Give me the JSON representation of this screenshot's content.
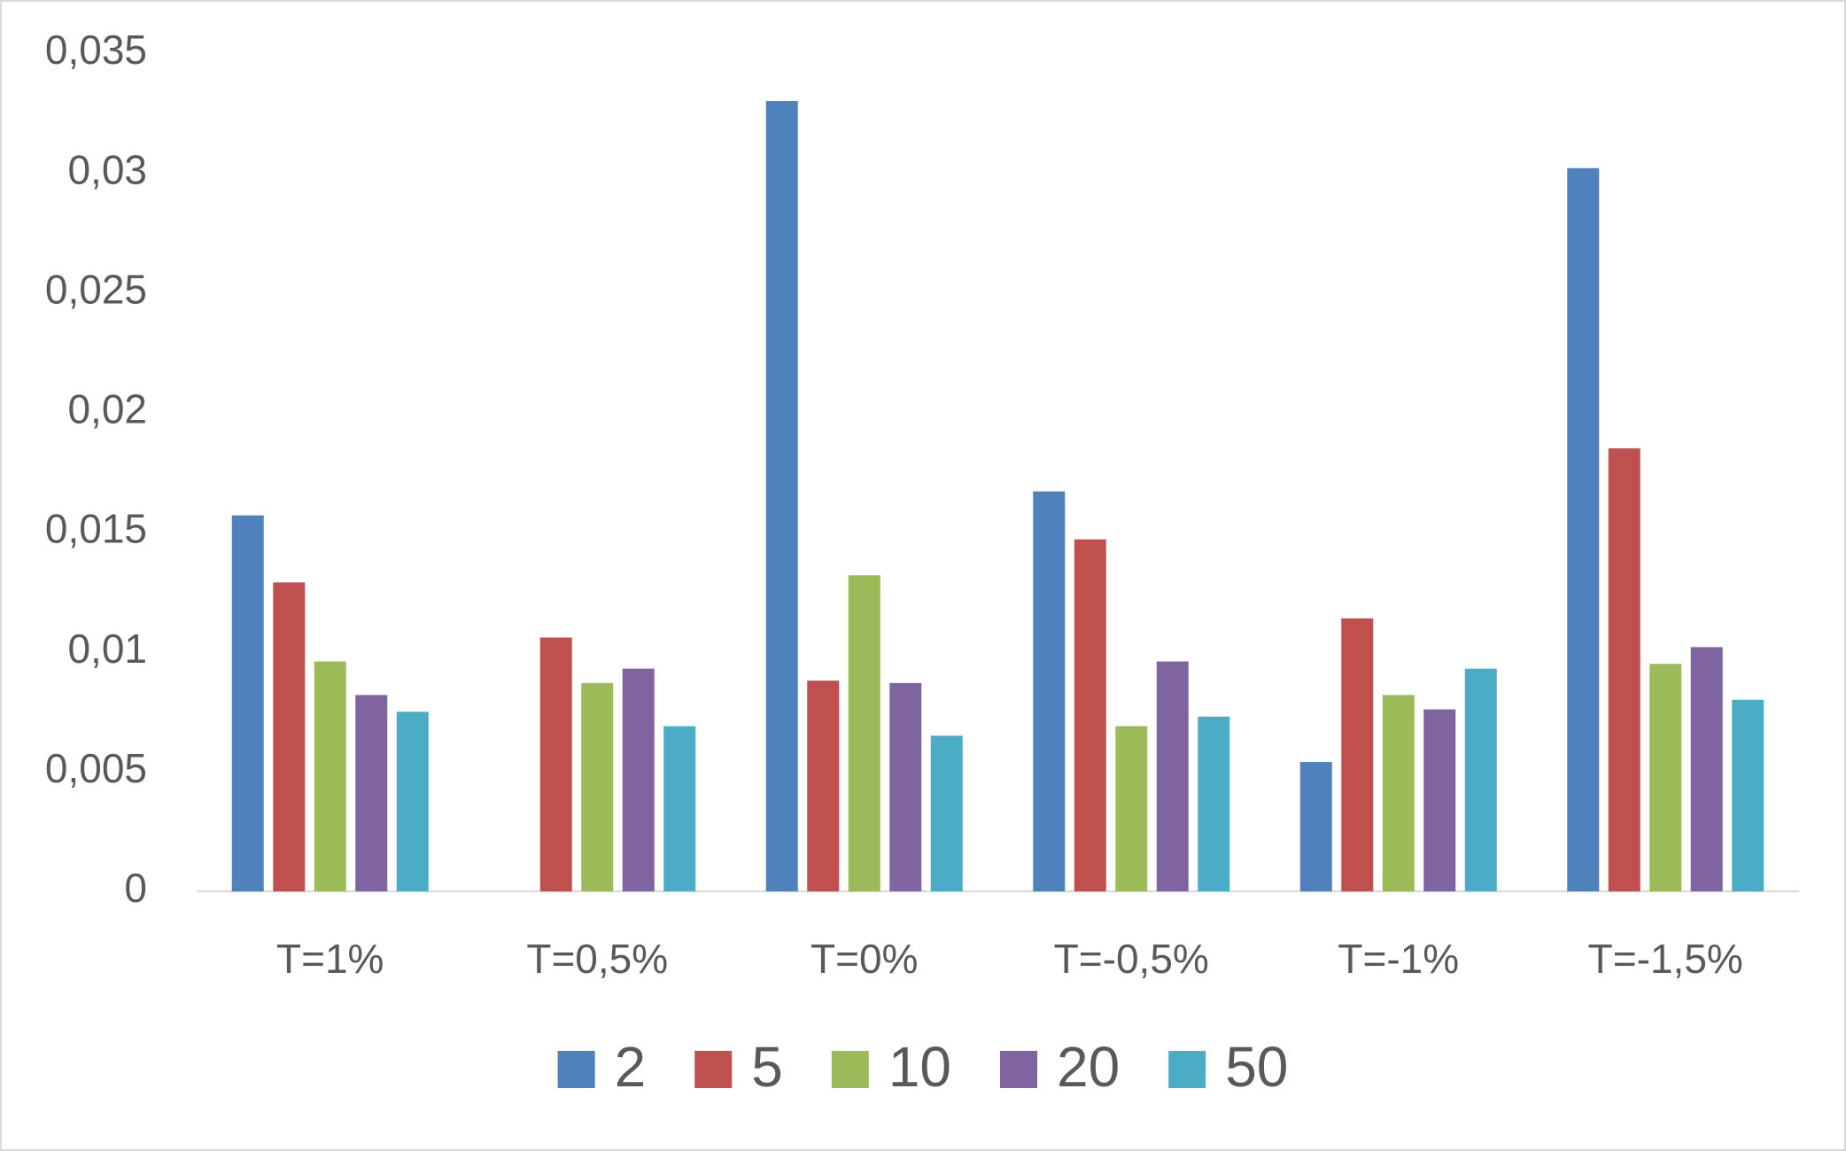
{
  "chart_data": {
    "type": "bar",
    "categories": [
      "T=1%",
      "T=0,5%",
      "T=0%",
      "T=-0,5%",
      "T=-1%",
      "T=-1,5%"
    ],
    "series": [
      {
        "name": "2",
        "color": "#4f81bd",
        "values": [
          0.0157,
          null,
          0.033,
          0.0167,
          0.0054,
          0.0302
        ]
      },
      {
        "name": "5",
        "color": "#c0504d",
        "values": [
          0.0129,
          0.0106,
          0.0088,
          0.0147,
          0.0114,
          0.0185
        ]
      },
      {
        "name": "10",
        "color": "#9bbb59",
        "values": [
          0.0096,
          0.0087,
          0.0132,
          0.0069,
          0.0082,
          0.0095
        ]
      },
      {
        "name": "20",
        "color": "#8064a2",
        "values": [
          0.0082,
          0.0093,
          0.0087,
          0.0096,
          0.0076,
          0.0102
        ]
      },
      {
        "name": "50",
        "color": "#4bacc6",
        "values": [
          0.0075,
          0.0069,
          0.0065,
          0.0073,
          0.0093,
          0.008
        ]
      }
    ],
    "ylim": [
      0,
      0.035
    ],
    "yticks": [
      0,
      {
        "value": 0.005,
        "label": "0,005"
      },
      {
        "value": 0.01,
        "label": "0,01"
      },
      {
        "value": 0.015,
        "label": "0,015"
      },
      {
        "value": 0.02,
        "label": "0,02"
      },
      {
        "value": 0.025,
        "label": "0,025"
      },
      {
        "value": 0.03,
        "label": "0,03"
      },
      {
        "value": 0.035,
        "label": "0,035"
      }
    ],
    "grid": false,
    "legend": "bottom"
  }
}
